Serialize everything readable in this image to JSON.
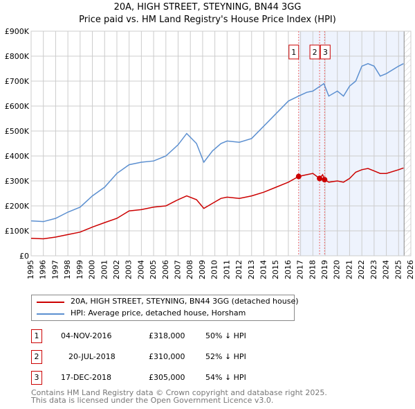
{
  "chart_data": {
    "type": "line",
    "title": "20A, HIGH STREET, STEYNING, BN44 3GG",
    "subtitle": "Price paid vs. HM Land Registry's House Price Index (HPI)",
    "xlim": [
      1995,
      2026
    ],
    "ylim": [
      0,
      900000
    ],
    "x_ticks": [
      "1995",
      "1996",
      "1997",
      "1998",
      "1999",
      "2000",
      "2001",
      "2002",
      "2003",
      "2004",
      "2005",
      "2006",
      "2007",
      "2008",
      "2009",
      "2010",
      "2011",
      "2012",
      "2013",
      "2014",
      "2015",
      "2016",
      "2017",
      "2018",
      "2019",
      "2020",
      "2021",
      "2022",
      "2023",
      "2024",
      "2025",
      "2026"
    ],
    "y_ticks": [
      {
        "v": 0,
        "l": "£0"
      },
      {
        "v": 100000,
        "l": "£100K"
      },
      {
        "v": 200000,
        "l": "£200K"
      },
      {
        "v": 300000,
        "l": "£300K"
      },
      {
        "v": 400000,
        "l": "£400K"
      },
      {
        "v": 500000,
        "l": "£500K"
      },
      {
        "v": 600000,
        "l": "£600K"
      },
      {
        "v": 700000,
        "l": "£700K"
      },
      {
        "v": 800000,
        "l": "£800K"
      },
      {
        "v": 900000,
        "l": "£900K"
      }
    ],
    "grid": true,
    "shaded_range": [
      2016.84,
      2025.45
    ],
    "hatched_from": 2025.45,
    "series": [
      {
        "name": "20A, HIGH STREET, STEYNING, BN44 3GG (detached house)",
        "color": "#cc0000",
        "x": [
          1995,
          1996,
          1997,
          1998,
          1999,
          2000,
          2001,
          2002,
          2003,
          2004,
          2005,
          2006,
          2007,
          2007.7,
          2008.5,
          2009.1,
          2009.8,
          2010.5,
          2011,
          2012,
          2013,
          2014,
          2015,
          2016,
          2016.84,
          2017.5,
          2018,
          2018.55,
          2018.8,
          2018.96,
          2019.3,
          2020,
          2020.5,
          2021,
          2021.5,
          2022,
          2022.5,
          2023,
          2023.5,
          2024,
          2025,
          2025.4
        ],
        "values": [
          70000,
          68000,
          75000,
          85000,
          95000,
          115000,
          133000,
          150000,
          180000,
          185000,
          195000,
          200000,
          225000,
          240000,
          225000,
          190000,
          210000,
          230000,
          235000,
          230000,
          240000,
          255000,
          275000,
          295000,
          318000,
          325000,
          330000,
          310000,
          325000,
          305000,
          295000,
          300000,
          295000,
          310000,
          335000,
          345000,
          350000,
          340000,
          330000,
          330000,
          345000,
          352000
        ]
      },
      {
        "name": "HPI: Average price, detached house, Horsham",
        "color": "#5b8fd0",
        "x": [
          1995,
          1996,
          1997,
          1998,
          1999,
          2000,
          2001,
          2002,
          2003,
          2004,
          2005,
          2006,
          2007,
          2007.7,
          2008.5,
          2009.1,
          2009.8,
          2010.5,
          2011,
          2012,
          2013,
          2014,
          2015,
          2016,
          2016.84,
          2017.5,
          2018,
          2018.9,
          2019.3,
          2020,
          2020.5,
          2021,
          2021.5,
          2022,
          2022.5,
          2023,
          2023.5,
          2024,
          2025,
          2025.4
        ],
        "values": [
          140000,
          137000,
          150000,
          175000,
          195000,
          240000,
          275000,
          330000,
          365000,
          375000,
          380000,
          400000,
          445000,
          490000,
          450000,
          375000,
          420000,
          450000,
          460000,
          455000,
          470000,
          520000,
          570000,
          620000,
          640000,
          655000,
          660000,
          690000,
          640000,
          660000,
          640000,
          680000,
          700000,
          760000,
          770000,
          760000,
          720000,
          730000,
          760000,
          770000
        ]
      }
    ],
    "sales": [
      {
        "n": "1",
        "x": 2016.84,
        "v": 318000
      },
      {
        "n": "2",
        "x": 2018.55,
        "v": 310000
      },
      {
        "n": "3",
        "x": 2018.96,
        "v": 305000
      }
    ]
  },
  "legend": [
    "20A, HIGH STREET, STEYNING, BN44 3GG (detached house)",
    "HPI: Average price, detached house, Horsham"
  ],
  "transactions": [
    {
      "n": "1",
      "date": "04-NOV-2016",
      "price": "£318,000",
      "hpi": "50% ↓ HPI"
    },
    {
      "n": "2",
      "date": "20-JUL-2018",
      "price": "£310,000",
      "hpi": "52% ↓ HPI"
    },
    {
      "n": "3",
      "date": "17-DEC-2018",
      "price": "£305,000",
      "hpi": "54% ↓ HPI"
    }
  ],
  "footer": [
    "Contains HM Land Registry data © Crown copyright and database right 2025.",
    "This data is licensed under the Open Government Licence v3.0."
  ]
}
